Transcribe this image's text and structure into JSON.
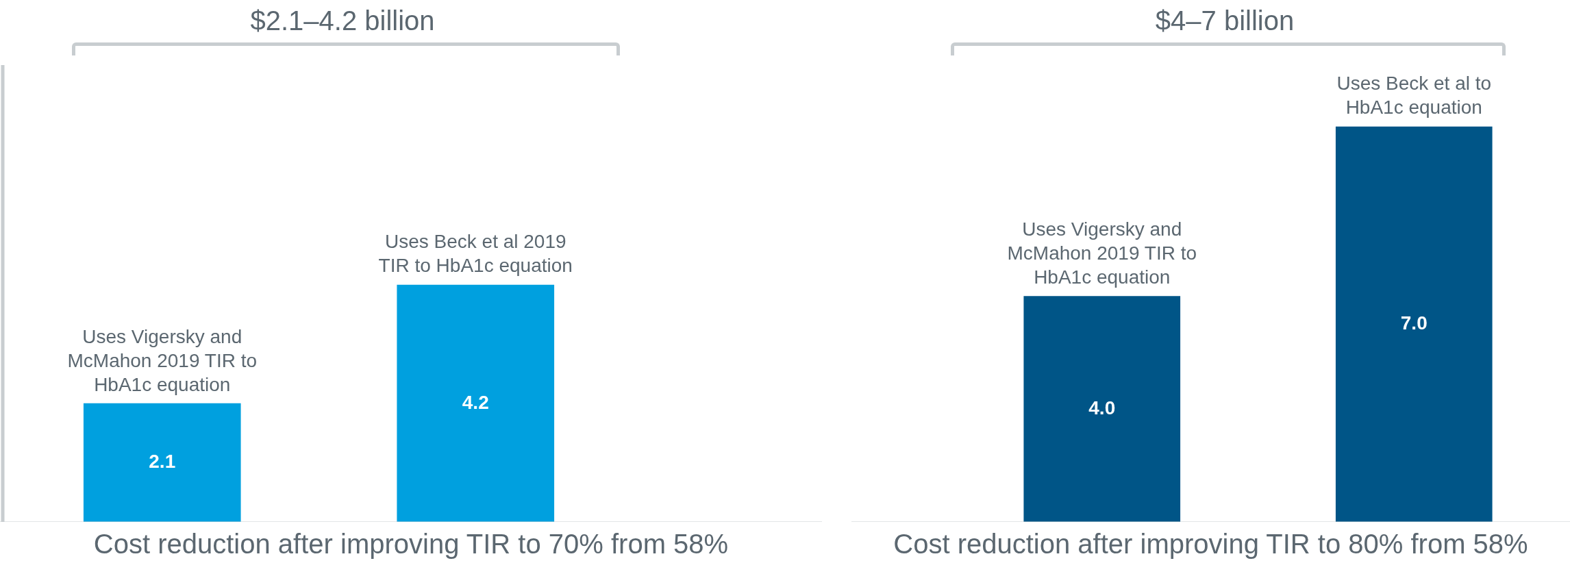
{
  "chart_data": [
    {
      "type": "bar",
      "title": "$2.1–4.2 billion",
      "xlabel": "Cost reduction after improving TIR to 70% from 58%",
      "categories": [
        null,
        null
      ],
      "values": [
        2.1,
        4.2
      ],
      "value_labels": [
        "2.1",
        "4.2"
      ],
      "color": "#00a0df",
      "annotations": [
        "Uses Vigersky and McMahon 2019 TIR to HbA1c equation",
        "Uses Beck et al 2019 TIR to HbA1c equation"
      ],
      "tick_labels": false
    },
    {
      "type": "bar",
      "title": "$4–7 billion",
      "xlabel": "Cost reduction after improving TIR to 80% from 58%",
      "categories": [
        null,
        null
      ],
      "values": [
        4.0,
        7.0
      ],
      "value_labels": [
        "4.0",
        "7.0"
      ],
      "color": "#005587",
      "annotations": [
        "Uses Vigersky and McMahon 2019 TIR to HbA1c equation",
        "Uses Beck et al to HbA1c equation"
      ],
      "tick_labels": false
    }
  ]
}
